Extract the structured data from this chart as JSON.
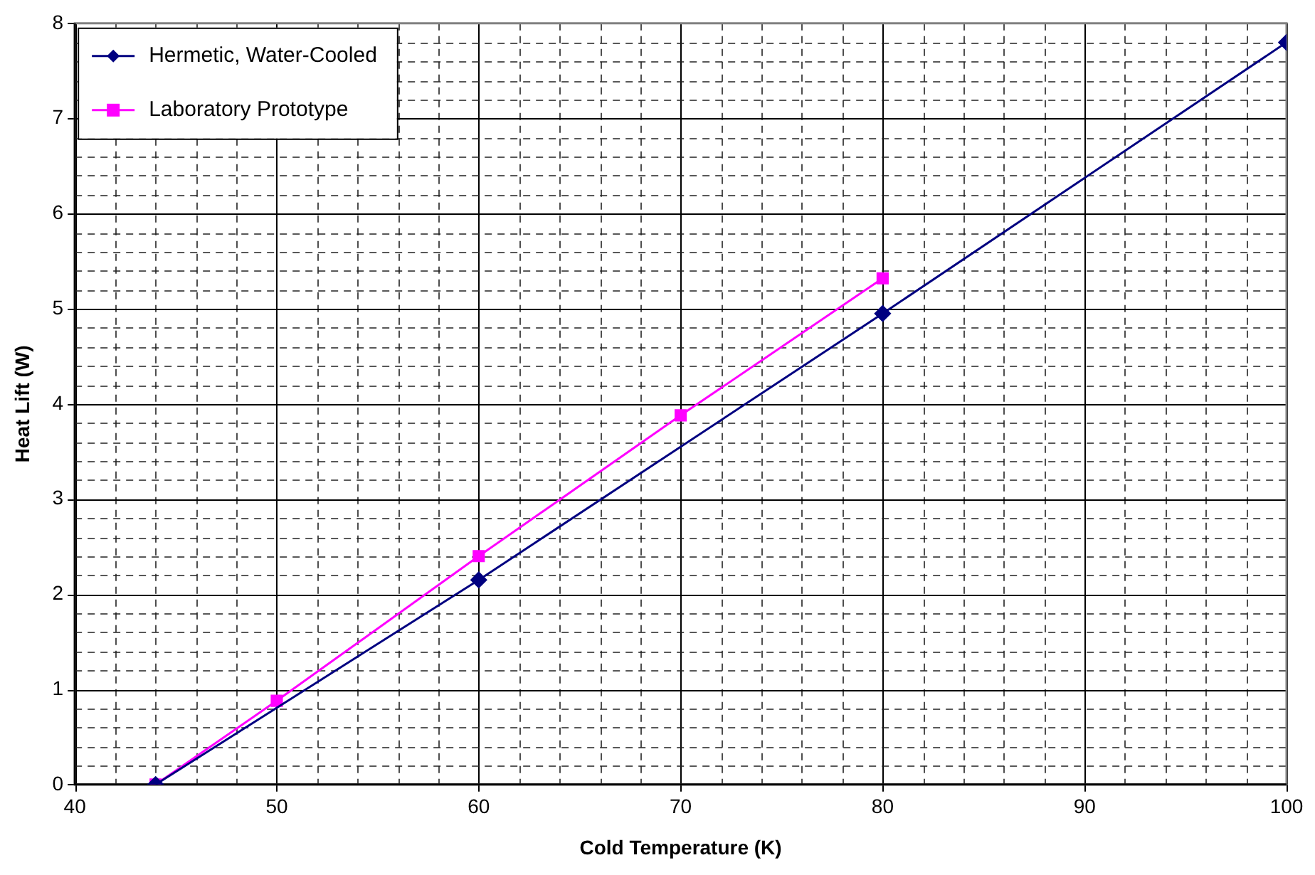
{
  "chart_data": {
    "type": "line",
    "xlabel": "Cold Temperature (K)",
    "ylabel": "Heat Lift (W)",
    "series": [
      {
        "name": "Hermetic, Water-Cooled",
        "color": "#000080",
        "marker": "diamond",
        "x": [
          44,
          60,
          80,
          100
        ],
        "values": [
          0,
          2.15,
          4.95,
          7.8
        ]
      },
      {
        "name": "Laboratory Prototype",
        "color": "#ff00ff",
        "marker": "square",
        "x": [
          44,
          50,
          60,
          70,
          80
        ],
        "values": [
          0,
          0.88,
          2.4,
          3.88,
          5.32
        ]
      }
    ],
    "xlim": [
      40,
      100
    ],
    "xticks": [
      40,
      {
        "value": 42,
        "label": null
      },
      {
        "value": 44,
        "label": null
      },
      {
        "value": 46,
        "label": null
      },
      {
        "value": 48,
        "label": null
      },
      50,
      {
        "value": 52,
        "label": null
      },
      {
        "value": 54,
        "label": null
      },
      {
        "value": 56,
        "label": null
      },
      {
        "value": 58,
        "label": null
      },
      60,
      {
        "value": 62,
        "label": null
      },
      {
        "value": 64,
        "label": null
      },
      {
        "value": 66,
        "label": null
      },
      {
        "value": 68,
        "label": null
      },
      70,
      {
        "value": 72,
        "label": null
      },
      {
        "value": 74,
        "label": null
      },
      {
        "value": 76,
        "label": null
      },
      {
        "value": 78,
        "label": null
      },
      80,
      {
        "value": 82,
        "label": null
      },
      {
        "value": 84,
        "label": null
      },
      {
        "value": 86,
        "label": null
      },
      {
        "value": 88,
        "label": null
      },
      90,
      {
        "value": 92,
        "label": null
      },
      {
        "value": 94,
        "label": null
      },
      {
        "value": 96,
        "label": null
      },
      {
        "value": 98,
        "label": null
      },
      100
    ],
    "ylim": [
      0,
      8
    ],
    "yticks": [
      0,
      {
        "value": 0.2,
        "label": null
      },
      {
        "value": 0.4,
        "label": null
      },
      {
        "value": 0.6,
        "label": null
      },
      {
        "value": 0.8,
        "label": null
      },
      1,
      {
        "value": 1.2,
        "label": null
      },
      {
        "value": 1.4,
        "label": null
      },
      {
        "value": 1.6,
        "label": null
      },
      {
        "value": 1.8,
        "label": null
      },
      2,
      {
        "value": 2.2,
        "label": null
      },
      {
        "value": 2.4,
        "label": null
      },
      {
        "value": 2.6,
        "label": null
      },
      {
        "value": 2.8,
        "label": null
      },
      3,
      {
        "value": 3.2,
        "label": null
      },
      {
        "value": 3.4,
        "label": null
      },
      {
        "value": 3.6,
        "label": null
      },
      {
        "value": 3.8,
        "label": null
      },
      4,
      {
        "value": 4.2,
        "label": null
      },
      {
        "value": 4.4,
        "label": null
      },
      {
        "value": 4.6,
        "label": null
      },
      {
        "value": 4.8,
        "label": null
      },
      5,
      {
        "value": 5.2,
        "label": null
      },
      {
        "value": 5.4,
        "label": null
      },
      {
        "value": 5.6,
        "label": null
      },
      {
        "value": 5.8,
        "label": null
      },
      6,
      {
        "value": 6.2,
        "label": null
      },
      {
        "value": 6.4,
        "label": null
      },
      {
        "value": 6.6,
        "label": null
      },
      {
        "value": 6.8,
        "label": null
      },
      7,
      {
        "value": 7.2,
        "label": null
      },
      {
        "value": 7.4,
        "label": null
      },
      {
        "value": 7.6,
        "label": null
      },
      {
        "value": 7.8,
        "label": null
      },
      8
    ],
    "grid": true,
    "legend": "top left"
  }
}
